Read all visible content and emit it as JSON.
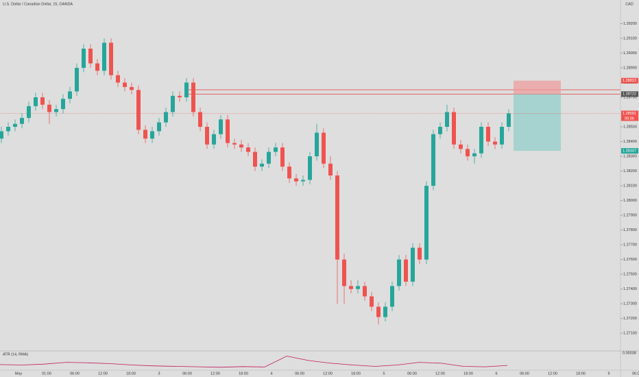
{
  "chart_data": {
    "type": "candlestick",
    "title": "U.S. Dollar / Canadian Dollar, 15, OANDA",
    "currency": "CAD",
    "up_color": "#26a69a",
    "down_color": "#ef5350",
    "open": [
      1.2842,
      1.2847,
      1.285,
      1.2852,
      1.2856,
      1.2864,
      1.287,
      1.2865,
      1.286,
      1.2862,
      1.2869,
      1.2874,
      1.289,
      1.2903,
      1.2893,
      1.2888,
      1.2907,
      1.2885,
      1.288,
      1.2877,
      1.2875,
      1.2848,
      1.2842,
      1.2847,
      1.2853,
      1.286,
      1.2871,
      1.287,
      1.288,
      1.286,
      1.285,
      1.2838,
      1.2845,
      1.2855,
      1.2839,
      1.2838,
      1.2836,
      1.2833,
      1.2823,
      1.2825,
      1.2833,
      1.2836,
      1.2823,
      1.2815,
      1.2813,
      1.2814,
      1.283,
      1.2846,
      1.2825,
      1.2817,
      1.276,
      1.2742,
      1.274,
      1.2742,
      1.2735,
      1.2728,
      1.2721,
      1.2728,
      1.2742,
      1.276,
      1.2745,
      1.2768,
      1.276,
      1.281,
      1.2845,
      1.285,
      1.286,
      1.2838,
      1.2835,
      1.283,
      1.2832,
      1.285,
      1.284,
      1.2838,
      1.285
    ],
    "high": [
      1.285,
      1.2853,
      1.2855,
      1.2859,
      1.2867,
      1.2873,
      1.2873,
      1.2868,
      1.2865,
      1.2872,
      1.2877,
      1.2893,
      1.2906,
      1.2906,
      1.2896,
      1.291,
      1.291,
      1.2888,
      1.2883,
      1.288,
      1.2878,
      1.2851,
      1.285,
      1.2856,
      1.2863,
      1.2874,
      1.2874,
      1.2883,
      1.2883,
      1.2863,
      1.2853,
      1.2848,
      1.2858,
      1.2858,
      1.2842,
      1.2841,
      1.2839,
      1.2836,
      1.2828,
      1.2836,
      1.2839,
      1.2839,
      1.2826,
      1.2818,
      1.2817,
      1.2833,
      1.2852,
      1.2849,
      1.283,
      1.282,
      1.2764,
      1.2746,
      1.2746,
      1.2745,
      1.2738,
      1.2731,
      1.2731,
      1.2745,
      1.2763,
      1.2763,
      1.2771,
      1.2771,
      1.2813,
      1.2848,
      1.2853,
      1.2865,
      1.2863,
      1.2841,
      1.2838,
      1.2835,
      1.2853,
      1.2853,
      1.2843,
      1.2853,
      1.2862
    ],
    "low": [
      1.2839,
      1.2844,
      1.2847,
      1.2849,
      1.2853,
      1.2861,
      1.2862,
      1.2852,
      1.2857,
      1.2859,
      1.2866,
      1.2871,
      1.2887,
      1.289,
      1.2885,
      1.2885,
      1.2882,
      1.2877,
      1.2874,
      1.2872,
      1.2845,
      1.2839,
      1.2839,
      1.2844,
      1.285,
      1.2857,
      1.2867,
      1.2867,
      1.2857,
      1.2847,
      1.2835,
      1.2835,
      1.2842,
      1.2836,
      1.2835,
      1.2833,
      1.283,
      1.282,
      1.282,
      1.2822,
      1.283,
      1.282,
      1.2812,
      1.281,
      1.281,
      1.2811,
      1.2827,
      1.2822,
      1.2814,
      1.273,
      1.273,
      1.2737,
      1.2737,
      1.2732,
      1.2725,
      1.2716,
      1.2718,
      1.2725,
      1.2739,
      1.2742,
      1.2742,
      1.2757,
      1.2757,
      1.2807,
      1.2842,
      1.2847,
      1.2835,
      1.2832,
      1.2827,
      1.2825,
      1.2829,
      1.2837,
      1.2835,
      1.2835,
      1.2847
    ],
    "close": [
      1.2847,
      1.285,
      1.2852,
      1.2856,
      1.2864,
      1.287,
      1.2865,
      1.286,
      1.2862,
      1.2869,
      1.2874,
      1.289,
      1.2903,
      1.2893,
      1.2888,
      1.2907,
      1.2885,
      1.288,
      1.2877,
      1.2875,
      1.2848,
      1.2842,
      1.2847,
      1.2853,
      1.286,
      1.2871,
      1.287,
      1.288,
      1.286,
      1.285,
      1.2838,
      1.2845,
      1.2855,
      1.2839,
      1.2838,
      1.2836,
      1.2833,
      1.2823,
      1.2825,
      1.2833,
      1.2836,
      1.2823,
      1.2815,
      1.2813,
      1.2814,
      1.283,
      1.2846,
      1.2825,
      1.2817,
      1.276,
      1.2742,
      1.274,
      1.2742,
      1.2735,
      1.2728,
      1.2721,
      1.2728,
      1.2742,
      1.276,
      1.2745,
      1.2768,
      1.276,
      1.281,
      1.2845,
      1.285,
      1.286,
      1.2838,
      1.2835,
      1.283,
      1.2832,
      1.285,
      1.284,
      1.2838,
      1.285,
      1.28591
    ],
    "ylim": [
      1.2698,
      1.2936
    ],
    "yticks": [
      {
        "value": 1.292,
        "label": "1.29200"
      },
      {
        "value": 1.291,
        "label": "1.29100"
      },
      {
        "value": 1.29,
        "label": "1.29000"
      },
      {
        "value": 1.289,
        "label": "1.28900"
      },
      {
        "value": 1.288,
        "label": "1.28800"
      },
      {
        "value": 1.287,
        "label": "1.28700"
      },
      {
        "value": 1.285,
        "label": "1.28500"
      },
      {
        "value": 1.284,
        "label": "1.28400"
      },
      {
        "value": 1.283,
        "label": "1.28300"
      },
      {
        "value": 1.282,
        "label": "1.28200"
      },
      {
        "value": 1.281,
        "label": "1.28100"
      },
      {
        "value": 1.28,
        "label": "1.28000"
      },
      {
        "value": 1.279,
        "label": "1.27900"
      },
      {
        "value": 1.278,
        "label": "1.27800"
      },
      {
        "value": 1.277,
        "label": "1.27700"
      },
      {
        "value": 1.276,
        "label": "1.27600"
      },
      {
        "value": 1.275,
        "label": "1.27500"
      },
      {
        "value": 1.274,
        "label": "1.27400"
      },
      {
        "value": 1.273,
        "label": "1.27300"
      },
      {
        "value": 1.272,
        "label": "1.27200"
      },
      {
        "value": 1.271,
        "label": "1.27100"
      }
    ],
    "levels": [
      1.28751,
      1.28722
    ],
    "stop": {
      "value": 1.28813,
      "label": "1.28813"
    },
    "entry": {
      "value": 1.28722,
      "label": "1.28722"
    },
    "last": {
      "value": 1.28591,
      "label": "1.28591"
    },
    "countdown": "09:36",
    "target": {
      "value": 1.28337,
      "label": "1.28337"
    },
    "time_labels": [
      "May",
      "01:00",
      "06:00",
      "12:00",
      "18:00",
      "3",
      "06:00",
      "12:00",
      "18:00",
      "4",
      "06:00",
      "12:00",
      "18:00",
      "5",
      "06:00",
      "12:00",
      "18:00",
      "6",
      "06:00",
      "12:00",
      "18:00",
      "9",
      "06:00"
    ],
    "atr": {
      "name": "ATR (14, RMA)",
      "color": "#c2185b",
      "values": [
        0.00042,
        0.0004,
        0.00044,
        0.00052,
        0.0005,
        0.00046,
        0.0004,
        0.00036,
        0.00034,
        0.00032,
        0.0003,
        0.00033,
        0.00031,
        0.0008,
        0.0006,
        0.00048,
        0.0004,
        0.00034,
        0.0004,
        0.00052,
        0.00048,
        0.00034,
        0.00032,
        0.00038
      ],
      "ylim": [
        0.0002,
        0.001
      ]
    }
  }
}
